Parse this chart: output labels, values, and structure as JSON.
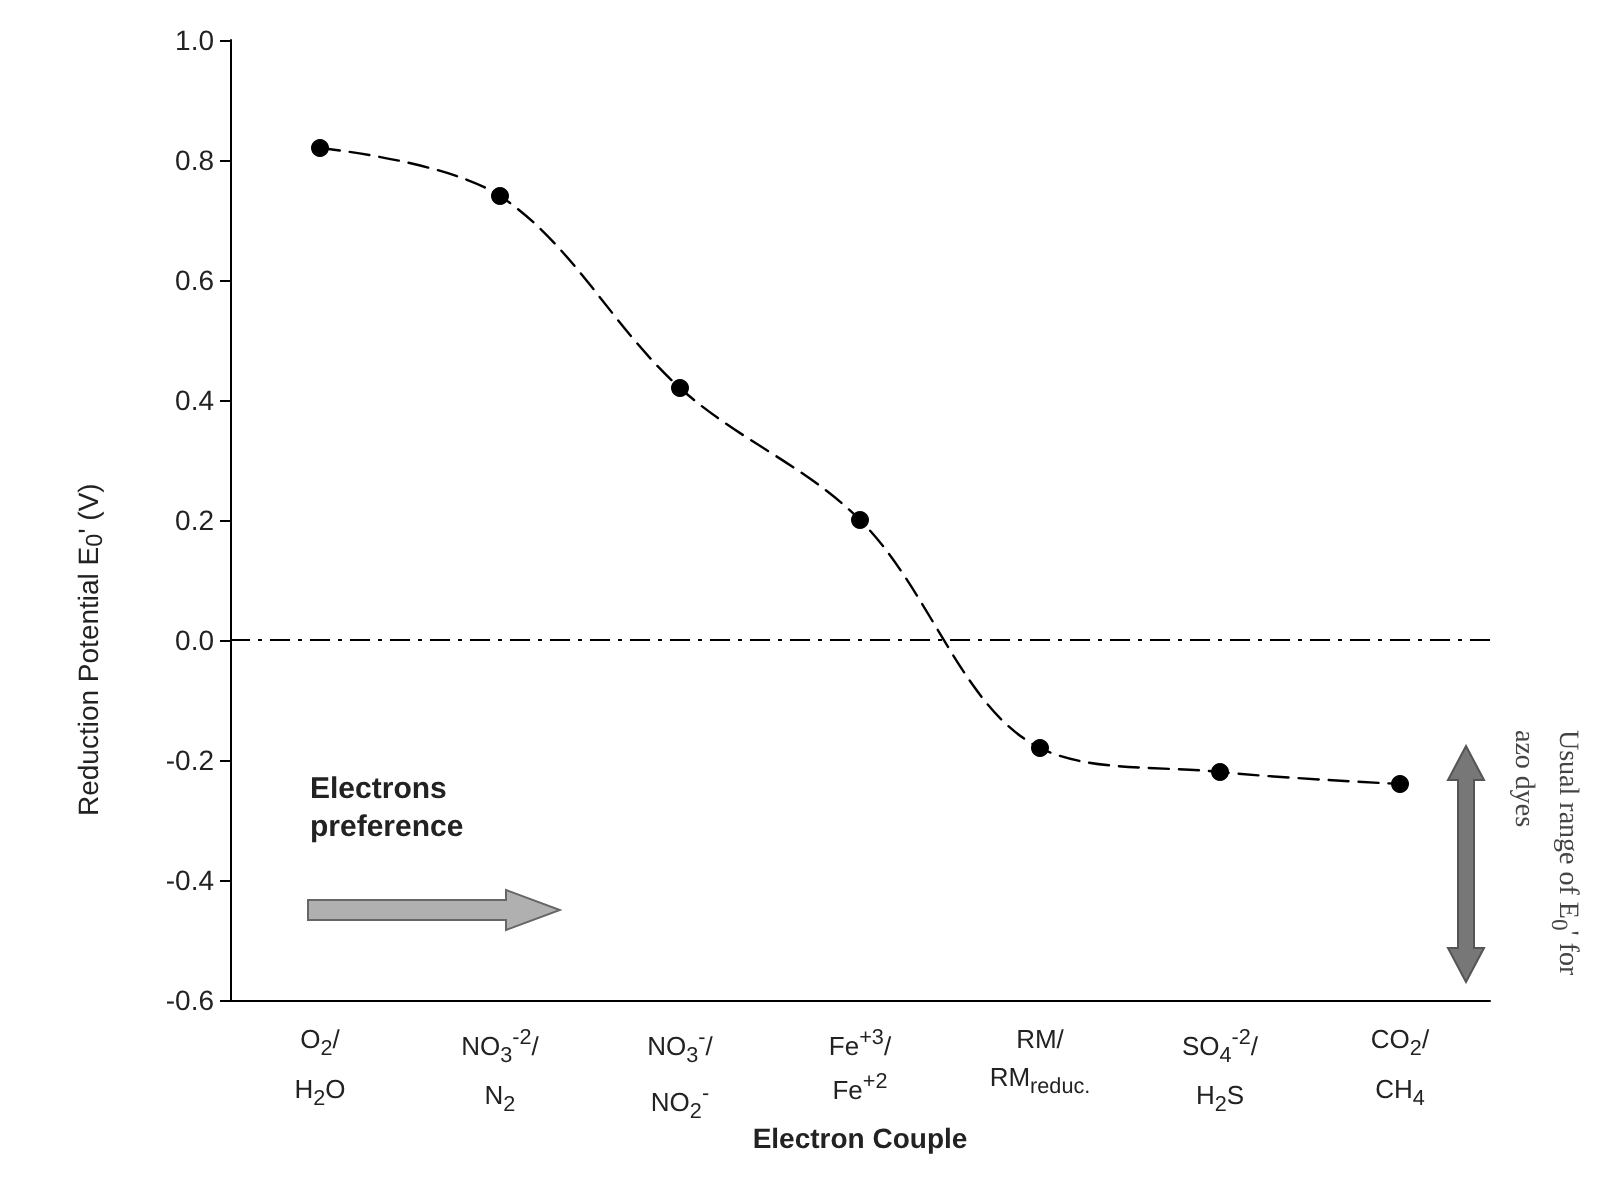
{
  "chart_data": {
    "type": "line",
    "xlabel": "Electron Couple",
    "ylabel": "Reduction Potential E$_{0}$' (V)",
    "categories": [
      "O$_{2}$/\nH$_{2}$O",
      "NO$_{3}$$^{-2}$/\nN$_{2}$",
      "NO$_{3}$$^{-}$/\nNO$_{2}$$^{-}$",
      "Fe$^{+3}$/\nFe$^{+2}$",
      "RM/\nRM$_{reduc.}$",
      "SO$_{4}$$^{-2}$/\nH$_{2}$S",
      "CO$_{2}$/\nCH$_{4}$"
    ],
    "series": [
      {
        "color": "#000000",
        "values": [
          0.82,
          0.74,
          0.42,
          0.2,
          -0.18,
          -0.22,
          -0.24
        ]
      }
    ],
    "ylim": [
      -0.6,
      1.0
    ],
    "yticks": [
      -0.6,
      -0.4,
      -0.2,
      {
        "value": 0,
        "label": "0.0"
      },
      0.2,
      0.4,
      0.6,
      0.8,
      {
        "value": 1,
        "label": "1.0"
      }
    ],
    "marker": "circle",
    "line_style": "dashed",
    "ref_lines": [
      {
        "axis": "y",
        "value": 0,
        "color": "#000000",
        "line_style": "dashed"
      }
    ],
    "annotations": [
      "Electrons preference",
      "Usual range of E$_{0}$' for azo dyes"
    ]
  }
}
